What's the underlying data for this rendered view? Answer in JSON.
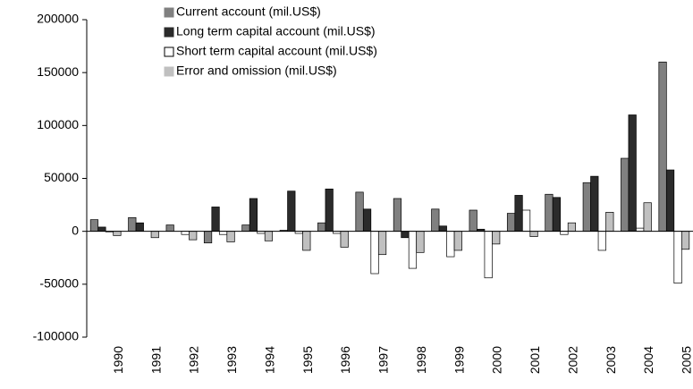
{
  "chart_data": {
    "type": "bar",
    "categories": [
      "1990",
      "1991",
      "1992",
      "1993",
      "1994",
      "1995",
      "1996",
      "1997",
      "1998",
      "1999",
      "2000",
      "2001",
      "2002",
      "2003",
      "2004",
      "2005"
    ],
    "series": [
      {
        "name": "Current account (mil.US$)",
        "color": "#808080",
        "values": [
          11000,
          13000,
          6000,
          -11000,
          6000,
          1000,
          8000,
          37000,
          31000,
          21000,
          20000,
          17000,
          35000,
          46000,
          69000,
          160000
        ]
      },
      {
        "name": "Long term capital account (mil.US$)",
        "color": "#2b2b2b",
        "values": [
          4000,
          8000,
          0,
          23000,
          31000,
          38000,
          40000,
          21000,
          -6000,
          5000,
          2000,
          34000,
          32000,
          52000,
          110000,
          58000
        ]
      },
      {
        "name": "Short term capital account (mil.US$)",
        "color": "#ffffff",
        "values": [
          -500,
          0,
          -3000,
          -3000,
          -2000,
          -2000,
          -2000,
          -40000,
          -35000,
          -24000,
          -44000,
          20000,
          -3000,
          -18000,
          3000,
          -49000
        ]
      },
      {
        "name": "Error and omission (mil.US$)",
        "color": "#c0c0c0",
        "values": [
          -4000,
          -6000,
          -8000,
          -10000,
          -9000,
          -18000,
          -15000,
          -22000,
          -20000,
          -18000,
          -12000,
          -5000,
          8000,
          18000,
          27000,
          -17000
        ]
      }
    ],
    "ylim": [
      -100000,
      200000
    ],
    "yticks": [
      -100000,
      -50000,
      0,
      50000,
      100000,
      150000,
      200000
    ],
    "grid": false,
    "legend": "top-left"
  }
}
